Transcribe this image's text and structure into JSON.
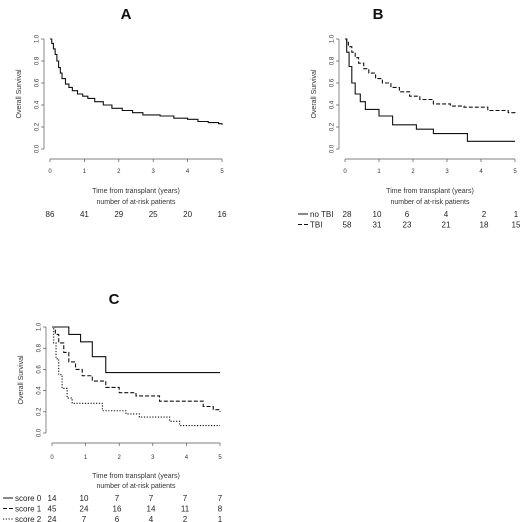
{
  "chart_data": [
    {
      "type": "line",
      "panel_label": "A",
      "xlabel": "Time from transplant (years)",
      "ylabel": "Overall Survival",
      "xlim": [
        0,
        5
      ],
      "ylim": [
        0,
        1
      ],
      "x_ticks": [
        "0",
        "1",
        "2",
        "3",
        "4",
        "5"
      ],
      "y_ticks": [
        "0.0",
        "0.2",
        "0.4",
        "0.6",
        "0.8",
        "1.0"
      ],
      "at_risk_title": "number of at-risk patients",
      "at_risk_times": [
        0,
        1,
        2,
        3,
        4,
        5
      ],
      "series": [
        {
          "name": "",
          "dash": "solid",
          "x": [
            0,
            0.05,
            0.1,
            0.15,
            0.2,
            0.25,
            0.3,
            0.35,
            0.45,
            0.55,
            0.65,
            0.8,
            0.95,
            1.1,
            1.3,
            1.55,
            1.8,
            2.1,
            2.4,
            2.7,
            3.2,
            3.6,
            4.0,
            4.3,
            4.6,
            4.9,
            5.0
          ],
          "y": [
            1.0,
            0.96,
            0.91,
            0.86,
            0.8,
            0.74,
            0.69,
            0.64,
            0.59,
            0.56,
            0.53,
            0.5,
            0.48,
            0.46,
            0.43,
            0.4,
            0.37,
            0.35,
            0.33,
            0.31,
            0.3,
            0.28,
            0.27,
            0.25,
            0.24,
            0.23,
            0.22
          ],
          "at_risk": [
            "86",
            "41",
            "29",
            "25",
            "20",
            "16"
          ]
        }
      ]
    },
    {
      "type": "line",
      "panel_label": "B",
      "xlabel": "Time from transplant (years)",
      "ylabel": "Overall Survival",
      "xlim": [
        0,
        5
      ],
      "ylim": [
        0,
        1
      ],
      "x_ticks": [
        "0",
        "1",
        "2",
        "3",
        "4",
        "5"
      ],
      "y_ticks": [
        "0.0",
        "0.2",
        "0.4",
        "0.6",
        "0.8",
        "1.0"
      ],
      "at_risk_title": "number of at-risk patients",
      "at_risk_times": [
        0,
        1,
        2,
        3,
        4,
        5
      ],
      "series": [
        {
          "name": "no TBI",
          "dash": "solid",
          "x": [
            0,
            0.05,
            0.12,
            0.2,
            0.3,
            0.45,
            0.6,
            1.0,
            1.4,
            2.1,
            2.6,
            3.6,
            5.0
          ],
          "y": [
            1.0,
            0.88,
            0.75,
            0.6,
            0.5,
            0.43,
            0.36,
            0.3,
            0.22,
            0.18,
            0.14,
            0.07,
            0.07
          ],
          "at_risk": [
            "28",
            "10",
            "6",
            "4",
            "2",
            "1"
          ]
        },
        {
          "name": "TBI",
          "dash": "dashed",
          "x": [
            0,
            0.05,
            0.1,
            0.2,
            0.3,
            0.4,
            0.55,
            0.7,
            0.9,
            1.1,
            1.35,
            1.6,
            1.9,
            2.2,
            2.6,
            3.1,
            3.5,
            4.2,
            4.8,
            5.0
          ],
          "y": [
            1.0,
            0.97,
            0.93,
            0.88,
            0.83,
            0.78,
            0.73,
            0.69,
            0.64,
            0.6,
            0.56,
            0.52,
            0.48,
            0.45,
            0.41,
            0.39,
            0.38,
            0.35,
            0.33,
            0.31
          ],
          "at_risk": [
            "58",
            "31",
            "23",
            "21",
            "18",
            "15"
          ]
        }
      ]
    },
    {
      "type": "line",
      "panel_label": "C",
      "xlabel": "Time from transplant (years)",
      "ylabel": "Overall Survival",
      "xlim": [
        0,
        5
      ],
      "ylim": [
        0,
        1
      ],
      "x_ticks": [
        "0",
        "1",
        "2",
        "3",
        "4",
        "5"
      ],
      "y_ticks": [
        "0.0",
        "0.2",
        "0.4",
        "0.6",
        "0.8",
        "1.0"
      ],
      "at_risk_title": "number of at-risk patients",
      "at_risk_times": [
        0,
        1,
        2,
        3,
        4,
        5
      ],
      "series": [
        {
          "name": "score 0",
          "dash": "solid",
          "x": [
            0,
            0.35,
            0.5,
            0.85,
            1.2,
            1.6,
            5.0
          ],
          "y": [
            1.0,
            1.0,
            0.93,
            0.86,
            0.72,
            0.57,
            0.57
          ],
          "at_risk": [
            "14",
            "10",
            "7",
            "7",
            "7",
            "7"
          ]
        },
        {
          "name": "score 1",
          "dash": "dashed",
          "x": [
            0,
            0.1,
            0.2,
            0.35,
            0.5,
            0.7,
            0.9,
            1.2,
            1.6,
            2.0,
            2.5,
            3.2,
            4.5,
            4.8,
            5.0
          ],
          "y": [
            1.0,
            0.93,
            0.85,
            0.76,
            0.67,
            0.6,
            0.54,
            0.49,
            0.43,
            0.38,
            0.35,
            0.3,
            0.25,
            0.22,
            0.2
          ],
          "at_risk": [
            "45",
            "24",
            "16",
            "14",
            "11",
            "8"
          ]
        },
        {
          "name": "score 2",
          "dash": "dotted",
          "x": [
            0,
            0.05,
            0.12,
            0.2,
            0.3,
            0.45,
            0.6,
            1.5,
            2.2,
            2.6,
            3.5,
            3.8,
            5.0
          ],
          "y": [
            1.0,
            0.85,
            0.7,
            0.55,
            0.42,
            0.33,
            0.28,
            0.21,
            0.18,
            0.15,
            0.11,
            0.07,
            0.07
          ],
          "at_risk": [
            "24",
            "7",
            "6",
            "4",
            "2",
            "1"
          ]
        }
      ]
    }
  ]
}
